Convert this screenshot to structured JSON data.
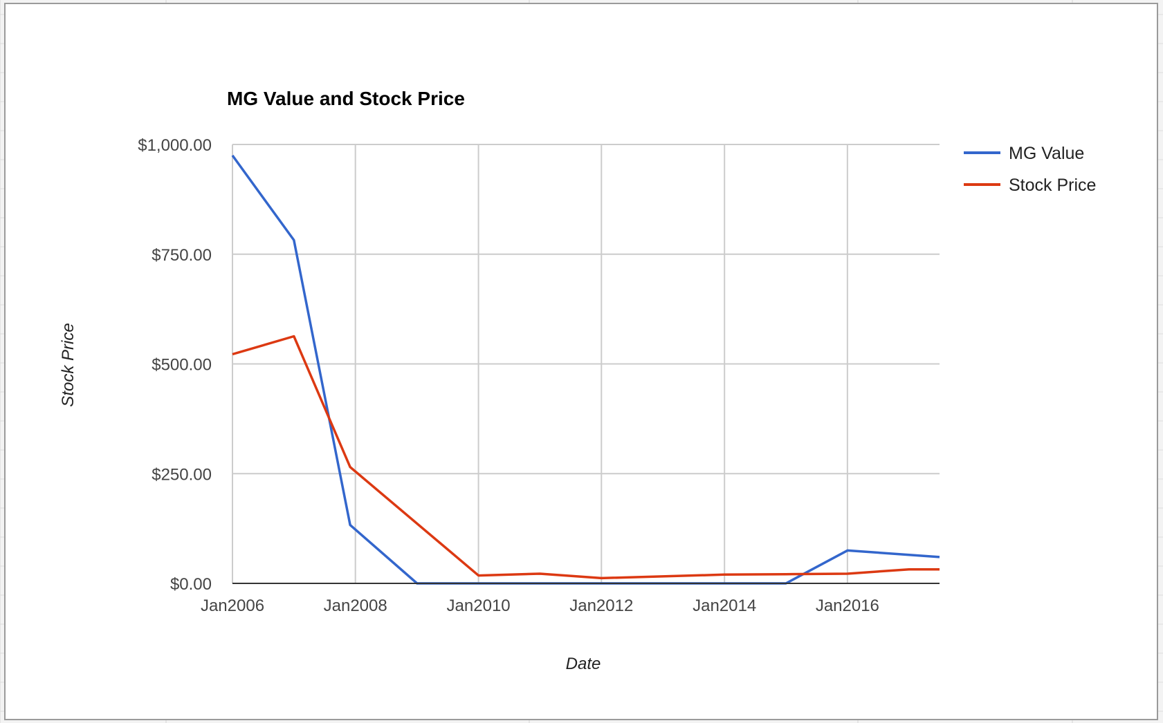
{
  "chart_data": {
    "type": "line",
    "title": "MG Value and Stock Price",
    "xlabel": "Date",
    "ylabel": "Stock Price",
    "ylim": [
      0,
      1000
    ],
    "y_ticks": [
      0,
      250,
      500,
      750,
      1000
    ],
    "y_tick_labels": [
      "$0.00",
      "$250.00",
      "$500.00",
      "$750.00",
      "$1,000.00"
    ],
    "xlim": [
      "2006-01-01",
      "2017-07-01"
    ],
    "x_ticks": [
      "2006-01-01",
      "2008-01-01",
      "2010-01-01",
      "2012-01-01",
      "2014-01-01",
      "2016-01-01"
    ],
    "x_tick_labels": [
      "Jan2006",
      "Jan2008",
      "Jan2010",
      "Jan2012",
      "Jan2014",
      "Jan2016"
    ],
    "grid": true,
    "legend_position": "right",
    "series": [
      {
        "name": "MG Value",
        "color": "#3366cc",
        "points": [
          {
            "x": "2006-01-01",
            "y": 975
          },
          {
            "x": "2007-01-01",
            "y": 782
          },
          {
            "x": "2007-12-01",
            "y": 133
          },
          {
            "x": "2009-01-01",
            "y": 0
          },
          {
            "x": "2010-01-01",
            "y": 0
          },
          {
            "x": "2011-01-01",
            "y": 0
          },
          {
            "x": "2012-01-01",
            "y": 0
          },
          {
            "x": "2013-01-01",
            "y": 0
          },
          {
            "x": "2014-01-01",
            "y": 0
          },
          {
            "x": "2015-01-01",
            "y": 0
          },
          {
            "x": "2016-01-01",
            "y": 75
          },
          {
            "x": "2017-01-01",
            "y": 65
          },
          {
            "x": "2017-07-01",
            "y": 60
          }
        ]
      },
      {
        "name": "Stock Price",
        "color": "#dc3912",
        "points": [
          {
            "x": "2006-01-01",
            "y": 522
          },
          {
            "x": "2007-01-01",
            "y": 563
          },
          {
            "x": "2007-12-01",
            "y": 265
          },
          {
            "x": "2010-01-01",
            "y": 18
          },
          {
            "x": "2011-01-01",
            "y": 22
          },
          {
            "x": "2012-01-01",
            "y": 12
          },
          {
            "x": "2014-01-01",
            "y": 20
          },
          {
            "x": "2015-01-01",
            "y": 21
          },
          {
            "x": "2016-01-01",
            "y": 22
          },
          {
            "x": "2017-01-01",
            "y": 32
          },
          {
            "x": "2017-07-01",
            "y": 32
          }
        ]
      }
    ]
  }
}
